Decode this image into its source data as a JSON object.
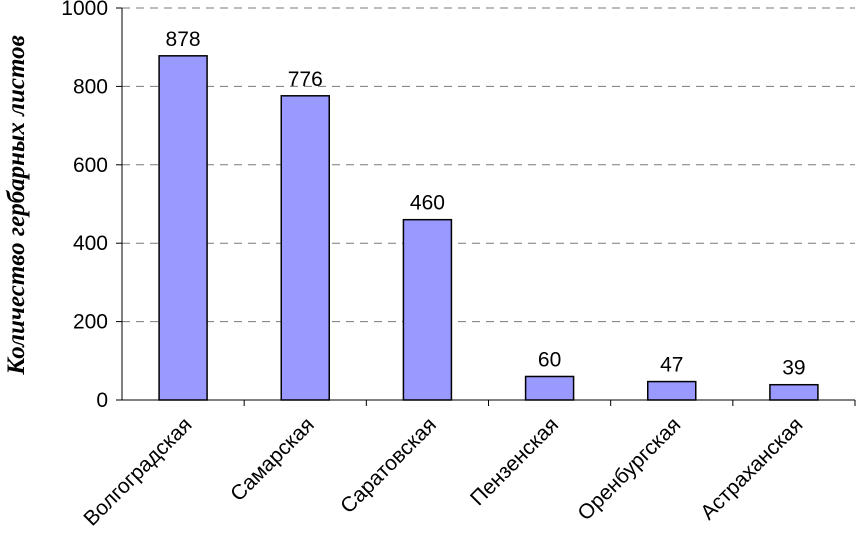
{
  "chart_data": {
    "type": "bar",
    "title": "",
    "xlabel": "",
    "ylabel": "Количество гербарных листов",
    "categories": [
      "Волгоградская",
      "Самарская",
      "Саратовская",
      "Пензенская",
      "Оренбургская",
      "Астраханская"
    ],
    "values": [
      878,
      776,
      460,
      60,
      47,
      39
    ],
    "ylim": [
      0,
      1000
    ],
    "yticks": [
      "0",
      "200",
      "400",
      "600",
      "800",
      "1000"
    ],
    "grid": "horizontal dashed",
    "legend": "none",
    "bar_color": "#9999ff",
    "bar_border_color": "#000000"
  }
}
